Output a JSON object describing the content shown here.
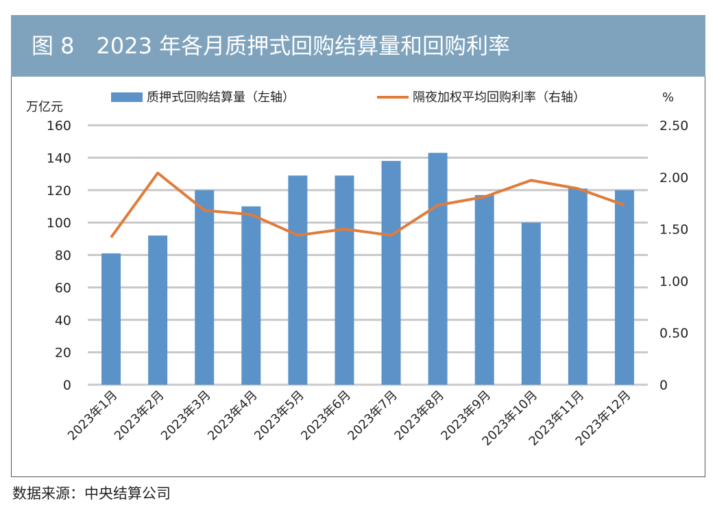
{
  "title": "图 8　2023 年各月质押式回购结算量和回购利率",
  "source": "数据来源：中央结算公司",
  "chart_data": {
    "type": "bar+line",
    "title": "图 8　2023 年各月质押式回购结算量和回购利率",
    "categories": [
      "2023年1月",
      "2023年2月",
      "2023年3月",
      "2023年4月",
      "2023年5月",
      "2023年6月",
      "2023年7月",
      "2023年8月",
      "2023年9月",
      "2023年10月",
      "2023年11月",
      "2023年12月"
    ],
    "series": [
      {
        "name": "质押式回购结算量（左轴）",
        "type": "bar",
        "axis": "left",
        "color": "#5b93c9",
        "values": [
          81,
          92,
          120,
          110,
          129,
          129,
          138,
          143,
          117,
          100,
          121,
          120
        ]
      },
      {
        "name": "隔夜加权平均回购利率（右轴）",
        "type": "line",
        "axis": "right",
        "color": "#e07b3c",
        "values": [
          1.42,
          2.04,
          1.68,
          1.64,
          1.44,
          1.5,
          1.44,
          1.73,
          1.81,
          1.97,
          1.89,
          1.73
        ]
      }
    ],
    "ylabel_left": "万亿元",
    "ylabel_right": "%",
    "ylim_left": [
      0,
      160
    ],
    "ylim_right": [
      0,
      2.5
    ],
    "yticks_left": [
      "0",
      "20",
      "40",
      "60",
      "80",
      "100",
      "120",
      "140",
      "160"
    ],
    "yticks_right": [
      "0",
      "0.50",
      "1.00",
      "1.50",
      "2.00",
      "2.50"
    ],
    "grid": true,
    "legend": "top"
  }
}
